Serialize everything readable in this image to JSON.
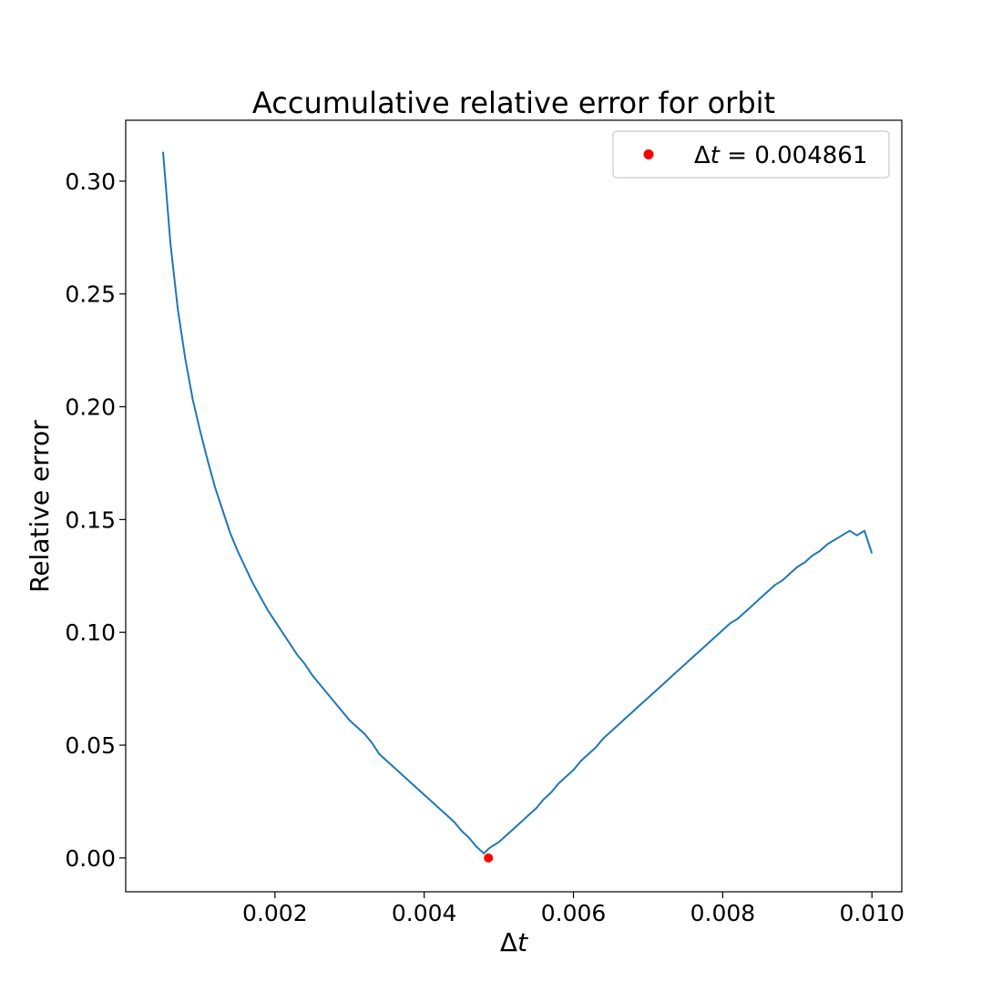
{
  "chart_data": {
    "type": "line",
    "title": "Accumulative relative error for orbit",
    "xlabel": "Δt",
    "ylabel": "Relative error",
    "xlim": [
      0.0,
      0.0104
    ],
    "ylim": [
      -0.015,
      0.327
    ],
    "x_ticks": [
      {
        "value": 0.002,
        "label": "0.002"
      },
      {
        "value": 0.004,
        "label": "0.004"
      },
      {
        "value": 0.006,
        "label": "0.006"
      },
      {
        "value": 0.008,
        "label": "0.008"
      },
      {
        "value": 0.01,
        "label": "0.010"
      }
    ],
    "y_ticks": [
      {
        "value": 0.0,
        "label": "0.00"
      },
      {
        "value": 0.05,
        "label": "0.05"
      },
      {
        "value": 0.1,
        "label": "0.10"
      },
      {
        "value": 0.15,
        "label": "0.15"
      },
      {
        "value": 0.2,
        "label": "0.20"
      },
      {
        "value": 0.25,
        "label": "0.25"
      },
      {
        "value": 0.3,
        "label": "0.30"
      }
    ],
    "grid": false,
    "legend_position": "top-right",
    "series": [
      {
        "kind": "line",
        "color": "#1f77b4",
        "x": [
          0.0005,
          0.0006,
          0.0007,
          0.0008,
          0.0009,
          0.001,
          0.0011,
          0.0012,
          0.0013,
          0.0014,
          0.0015,
          0.0016,
          0.0017,
          0.0018,
          0.0019,
          0.002,
          0.0021,
          0.0022,
          0.0023,
          0.0024,
          0.0025,
          0.0026,
          0.0027,
          0.0028,
          0.0029,
          0.003,
          0.0031,
          0.0032,
          0.0033,
          0.0034,
          0.0035,
          0.0036,
          0.0037,
          0.0038,
          0.0039,
          0.004,
          0.0041,
          0.0042,
          0.0043,
          0.0044,
          0.0045,
          0.0046,
          0.0047,
          0.0048,
          0.004861,
          0.0049,
          0.005,
          0.0051,
          0.0052,
          0.0053,
          0.0054,
          0.0055,
          0.0056,
          0.0057,
          0.0058,
          0.0059,
          0.006,
          0.0061,
          0.0062,
          0.0063,
          0.0064,
          0.0065,
          0.0066,
          0.0067,
          0.0068,
          0.0069,
          0.007,
          0.0071,
          0.0072,
          0.0073,
          0.0074,
          0.0075,
          0.0076,
          0.0077,
          0.0078,
          0.0079,
          0.008,
          0.0081,
          0.0082,
          0.0083,
          0.0084,
          0.0085,
          0.0086,
          0.0087,
          0.0088,
          0.0089,
          0.009,
          0.0091,
          0.0092,
          0.0093,
          0.0094,
          0.0095,
          0.0096,
          0.0097,
          0.0098,
          0.0099,
          0.01
        ],
        "y": [
          0.313,
          0.272,
          0.243,
          0.221,
          0.203,
          0.189,
          0.176,
          0.164,
          0.154,
          0.144,
          0.136,
          0.129,
          0.122,
          0.116,
          0.11,
          0.105,
          0.1,
          0.095,
          0.09,
          0.086,
          0.081,
          0.077,
          0.073,
          0.069,
          0.065,
          0.061,
          0.058,
          0.055,
          0.051,
          0.046,
          0.043,
          0.04,
          0.037,
          0.034,
          0.031,
          0.028,
          0.025,
          0.022,
          0.019,
          0.016,
          0.012,
          0.009,
          0.005,
          0.002,
          0.004,
          0.005,
          0.007,
          0.01,
          0.013,
          0.016,
          0.019,
          0.022,
          0.026,
          0.029,
          0.033,
          0.036,
          0.039,
          0.043,
          0.046,
          0.049,
          0.053,
          0.056,
          0.059,
          0.062,
          0.065,
          0.068,
          0.071,
          0.074,
          0.077,
          0.08,
          0.083,
          0.086,
          0.089,
          0.092,
          0.095,
          0.098,
          0.101,
          0.104,
          0.106,
          0.109,
          0.112,
          0.115,
          0.118,
          0.121,
          0.123,
          0.126,
          0.129,
          0.131,
          0.134,
          0.136,
          0.139,
          0.141,
          0.143,
          0.145,
          0.143,
          0.145,
          0.135
        ]
      },
      {
        "kind": "point",
        "name": "Δt = 0.004861",
        "color": "#ff0000",
        "x": [
          0.004861
        ],
        "y": [
          0.0
        ]
      }
    ]
  }
}
